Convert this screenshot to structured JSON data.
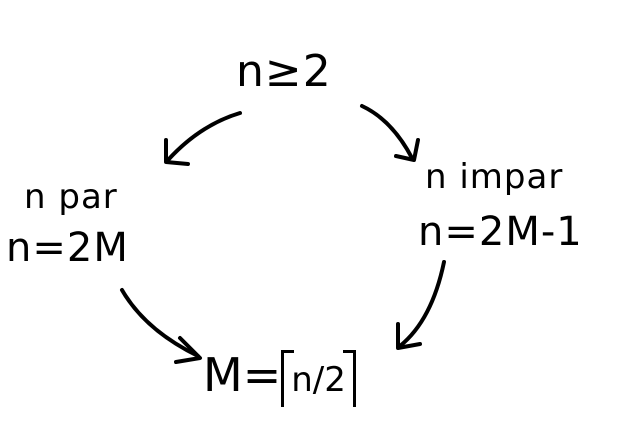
{
  "diagram": {
    "top": "n≥2",
    "left_title": "n par",
    "left_equation": "n=2M",
    "right_title": "n impar",
    "right_equation": "n=2M-1",
    "bottom_prefix": "M=",
    "bottom_ceil_content": "n/2"
  }
}
